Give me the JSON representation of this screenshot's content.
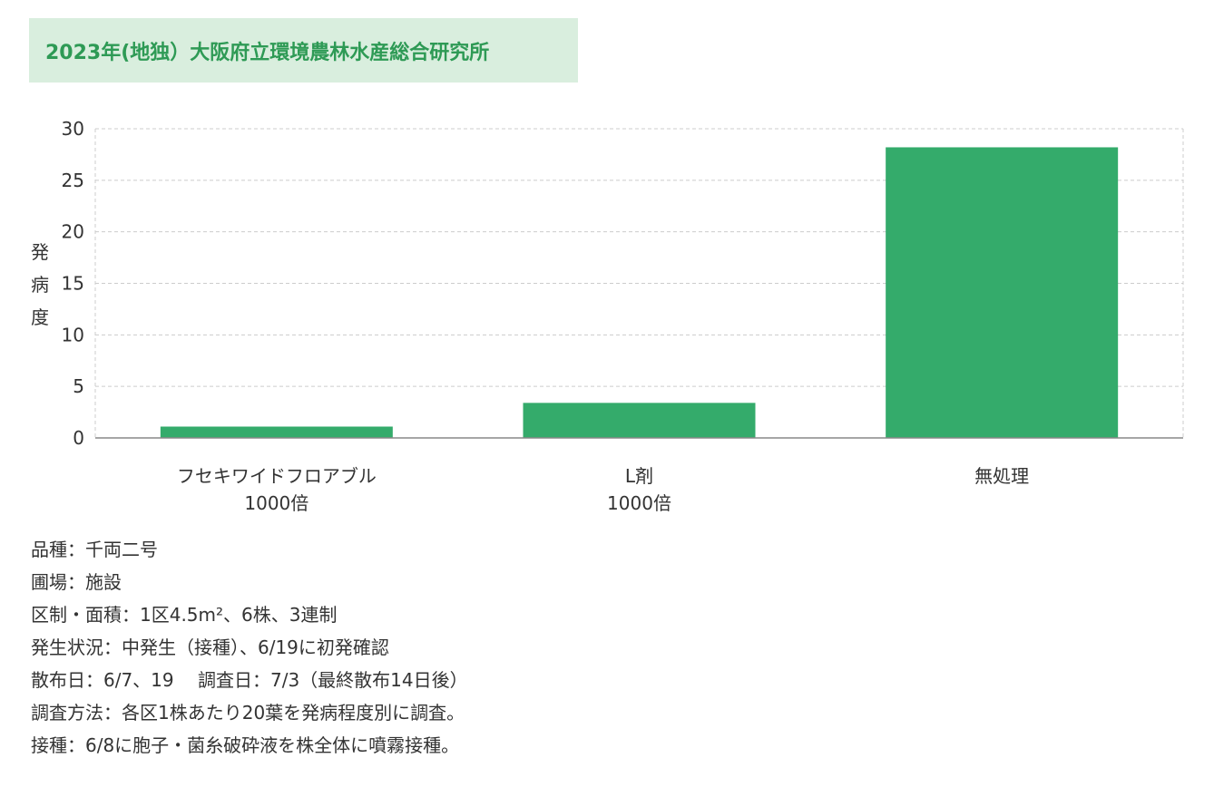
{
  "title": "2023年(地独）大阪府立環境農林水産総合研究所",
  "accent_color": "#34ab6b",
  "title_bg_color": "#d9eede",
  "title_text_color": "#2e9a55",
  "chart_data": {
    "type": "bar",
    "title": "",
    "xlabel": "",
    "ylabel": "発病度",
    "ylim": [
      0,
      30
    ],
    "yticks": [
      0,
      5,
      10,
      15,
      20,
      25,
      30
    ],
    "grid": true,
    "categories": [
      [
        "フセキワイドフロアブル",
        "1000倍"
      ],
      [
        "L剤",
        "1000倍"
      ],
      [
        "無処理"
      ]
    ],
    "values": [
      1.1,
      3.4,
      28.2
    ],
    "bar_color": "#34ab6b"
  },
  "notes": [
    "品種：千両二号",
    "圃場：施設",
    "区制・面積：1区4.5m²、6株、3連制",
    "発生状況：中発生（接種）、6/19に初発確認",
    "散布日：6/7、19　 調査日：7/3（最終散布14日後）",
    "調査方法：各区1株あたり20葉を発病程度別に調査。",
    "接種：6/8に胞子・菌糸破砕液を株全体に噴霧接種。"
  ]
}
